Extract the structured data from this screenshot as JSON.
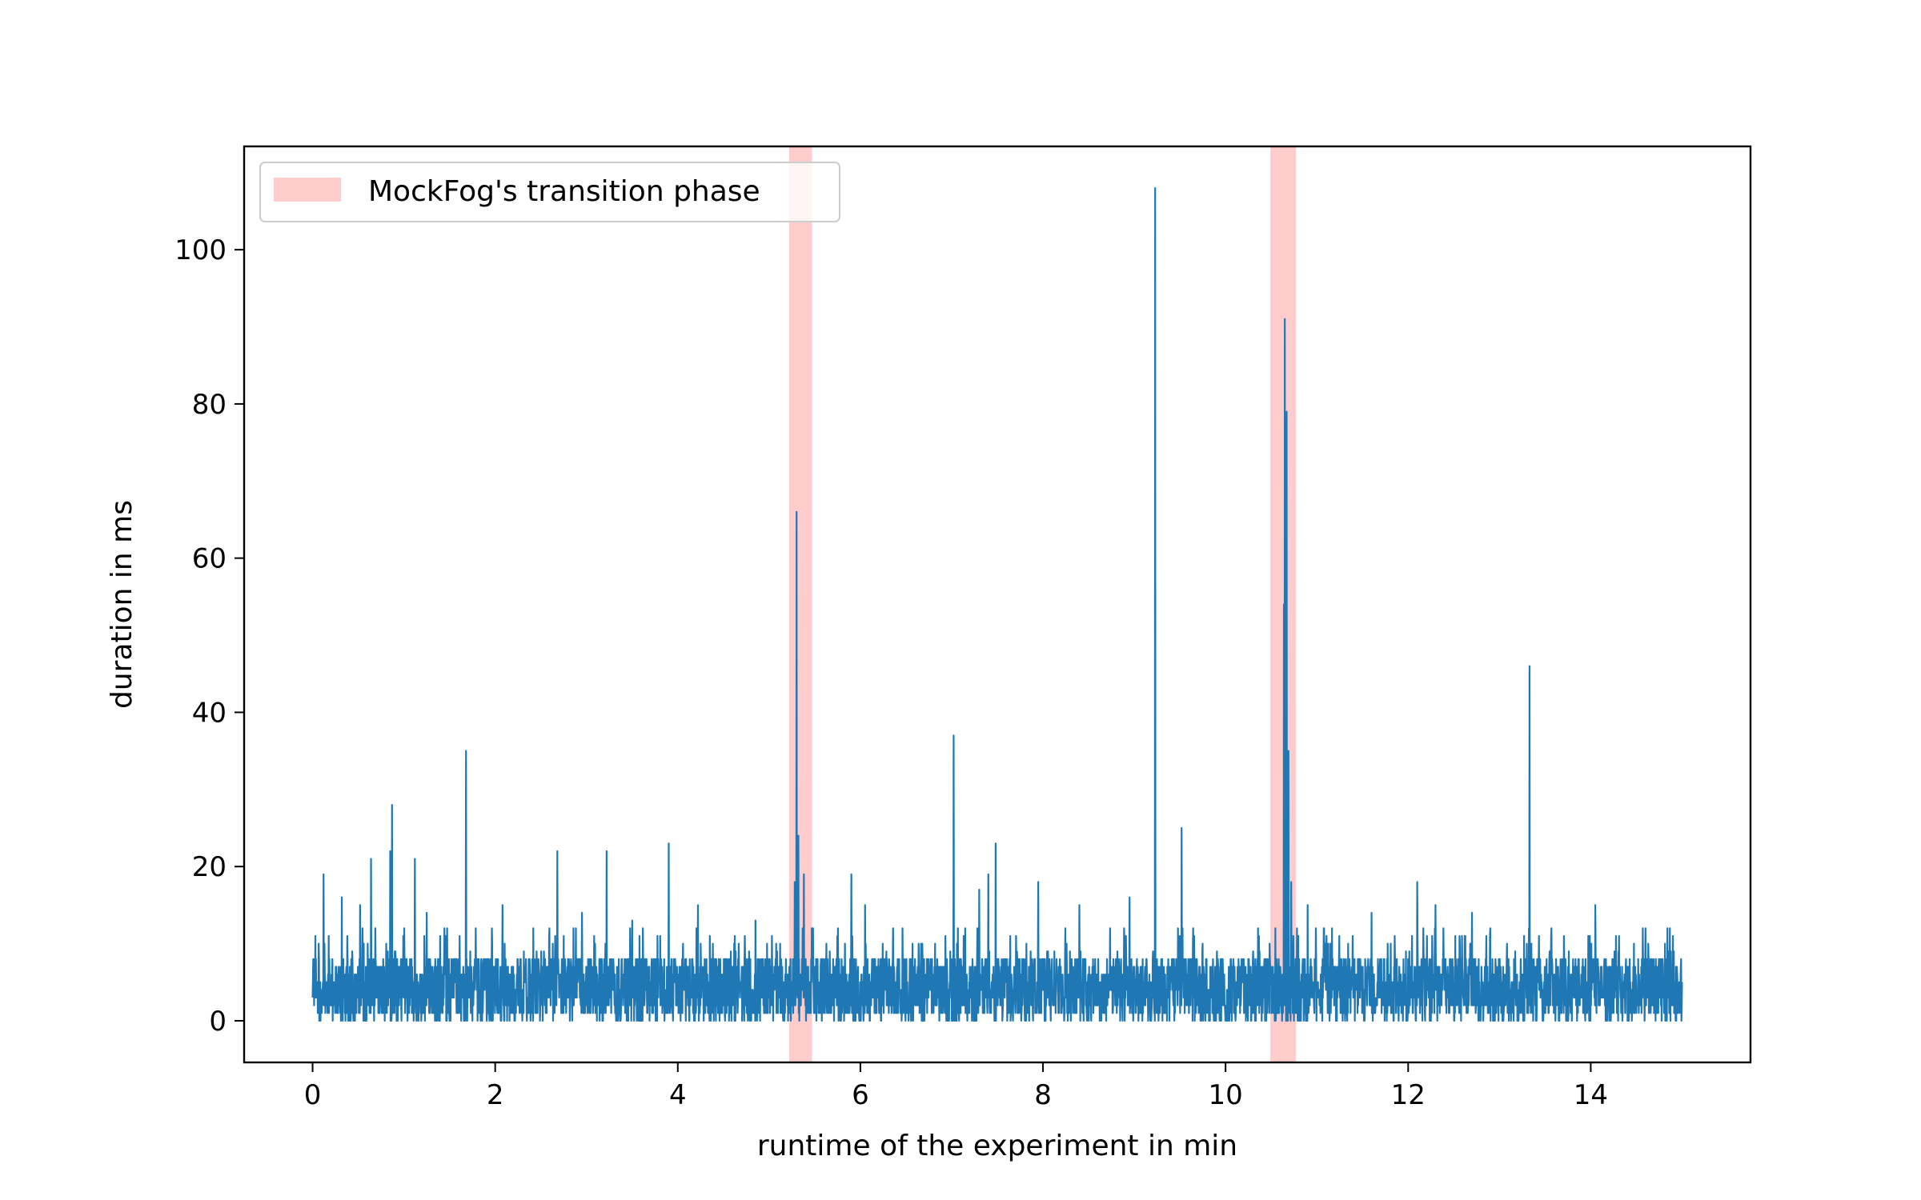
{
  "chart_data": {
    "type": "line",
    "title": "",
    "xlabel": "runtime of the experiment in min",
    "ylabel": "duration in ms",
    "xlim": [
      -0.75,
      15.75
    ],
    "ylim": [
      -5.4,
      113.4
    ],
    "x_ticks": [
      0,
      2,
      4,
      6,
      8,
      10,
      12,
      14
    ],
    "y_ticks": [
      0,
      20,
      40,
      60,
      80,
      100
    ],
    "x_tick_labels": [
      "0",
      "2",
      "4",
      "6",
      "8",
      "10",
      "12",
      "14"
    ],
    "y_tick_labels": [
      "0",
      "20",
      "40",
      "60",
      "80",
      "100"
    ],
    "grid": false,
    "legend": {
      "placement": "upper-left",
      "entries": [
        {
          "label": "MockFog's transition phase",
          "color": "#ffcccc",
          "kind": "patch"
        }
      ]
    },
    "spans": [
      {
        "label": "MockFog's transition phase",
        "x_start": 5.22,
        "x_end": 5.47,
        "color": "#ffcccc"
      },
      {
        "label": "MockFog's transition phase",
        "x_start": 10.49,
        "x_end": 10.77,
        "color": "#ffcccc"
      }
    ],
    "series": [
      {
        "color": "#1f77b4",
        "baseline": {
          "x_start": 0.0,
          "x_end": 15.0,
          "typical_min": 0,
          "typical_max": 8,
          "mean": 5
        },
        "spikes": [
          {
            "x": 0.03,
            "y": 11
          },
          {
            "x": 0.12,
            "y": 19
          },
          {
            "x": 0.32,
            "y": 16
          },
          {
            "x": 0.52,
            "y": 15
          },
          {
            "x": 0.64,
            "y": 21
          },
          {
            "x": 0.85,
            "y": 22
          },
          {
            "x": 0.87,
            "y": 28
          },
          {
            "x": 1.12,
            "y": 21
          },
          {
            "x": 1.25,
            "y": 14
          },
          {
            "x": 1.68,
            "y": 35
          },
          {
            "x": 2.08,
            "y": 15
          },
          {
            "x": 2.68,
            "y": 22
          },
          {
            "x": 2.95,
            "y": 14
          },
          {
            "x": 3.22,
            "y": 22
          },
          {
            "x": 3.5,
            "y": 13
          },
          {
            "x": 3.9,
            "y": 23
          },
          {
            "x": 4.22,
            "y": 15
          },
          {
            "x": 4.85,
            "y": 13
          },
          {
            "x": 5.28,
            "y": 18
          },
          {
            "x": 5.3,
            "y": 66
          },
          {
            "x": 5.32,
            "y": 24
          },
          {
            "x": 5.38,
            "y": 19
          },
          {
            "x": 5.9,
            "y": 19
          },
          {
            "x": 6.05,
            "y": 15
          },
          {
            "x": 7.02,
            "y": 37
          },
          {
            "x": 7.3,
            "y": 17
          },
          {
            "x": 7.4,
            "y": 19
          },
          {
            "x": 7.48,
            "y": 23
          },
          {
            "x": 7.95,
            "y": 18
          },
          {
            "x": 8.4,
            "y": 15
          },
          {
            "x": 8.95,
            "y": 16
          },
          {
            "x": 9.23,
            "y": 108
          },
          {
            "x": 9.52,
            "y": 25
          },
          {
            "x": 10.64,
            "y": 54
          },
          {
            "x": 10.65,
            "y": 91
          },
          {
            "x": 10.67,
            "y": 79
          },
          {
            "x": 10.69,
            "y": 35
          },
          {
            "x": 10.72,
            "y": 18
          },
          {
            "x": 10.9,
            "y": 15
          },
          {
            "x": 11.6,
            "y": 14
          },
          {
            "x": 12.1,
            "y": 18
          },
          {
            "x": 12.3,
            "y": 15
          },
          {
            "x": 12.7,
            "y": 14
          },
          {
            "x": 13.33,
            "y": 46
          },
          {
            "x": 14.05,
            "y": 15
          },
          {
            "x": 14.6,
            "y": 12
          },
          {
            "x": 14.9,
            "y": 11
          }
        ]
      }
    ]
  }
}
